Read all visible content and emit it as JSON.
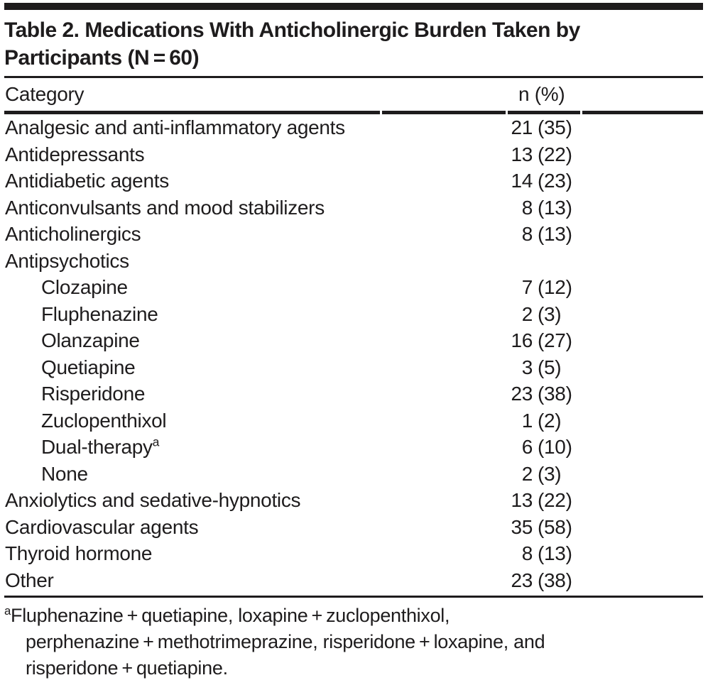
{
  "page": {
    "background": "#ffffff",
    "text_color": "#1e1c1d",
    "rule_color": "#1e1c1d"
  },
  "table": {
    "title_line1": "Table 2. Medications With Anticholinergic Burden Taken by",
    "title_line2": "Participants (N = 60)",
    "header": {
      "category": "Category",
      "value": "n (%)"
    },
    "rows": [
      {
        "label": "Analgesic and anti-inflammatory agents",
        "n": "21",
        "pct": "(35)",
        "indent": false
      },
      {
        "label": "Antidepressants",
        "n": "13",
        "pct": "(22)",
        "indent": false
      },
      {
        "label": "Antidiabetic agents",
        "n": "14",
        "pct": "(23)",
        "indent": false
      },
      {
        "label": "Anticonvulsants and mood stabilizers",
        "n": "8",
        "pct": "(13)",
        "indent": false
      },
      {
        "label": "Anticholinergics",
        "n": "8",
        "pct": "(13)",
        "indent": false
      },
      {
        "label": "Antipsychotics",
        "n": "",
        "pct": "",
        "indent": false
      },
      {
        "label": "Clozapine",
        "n": "7",
        "pct": "(12)",
        "indent": true
      },
      {
        "label": "Fluphenazine",
        "n": "2",
        "pct": "(3)",
        "indent": true
      },
      {
        "label": "Olanzapine",
        "n": "16",
        "pct": "(27)",
        "indent": true
      },
      {
        "label": "Quetiapine",
        "n": "3",
        "pct": "(5)",
        "indent": true
      },
      {
        "label": "Risperidone",
        "n": "23",
        "pct": "(38)",
        "indent": true
      },
      {
        "label": "Zuclopenthixol",
        "n": "1",
        "pct": "(2)",
        "indent": true
      },
      {
        "label": "Dual-therapy",
        "sup": "a",
        "n": "6",
        "pct": "(10)",
        "indent": true
      },
      {
        "label": "None",
        "n": "2",
        "pct": "(3)",
        "indent": true
      },
      {
        "label": "Anxiolytics and sedative-hypnotics",
        "n": "13",
        "pct": "(22)",
        "indent": false
      },
      {
        "label": "Cardiovascular agents",
        "n": "35",
        "pct": "(58)",
        "indent": false
      },
      {
        "label": "Thyroid hormone",
        "n": "8",
        "pct": "(13)",
        "indent": false
      },
      {
        "label": "Other",
        "n": "23",
        "pct": "(38)",
        "indent": false
      }
    ],
    "footnote": {
      "marker": "a",
      "lines": [
        "Fluphenazine + quetiapine, loxapine + zuclopenthixol,",
        "perphenazine + methotrimeprazine, risperidone + loxapine, and",
        "risperidone + quetiapine."
      ]
    }
  }
}
